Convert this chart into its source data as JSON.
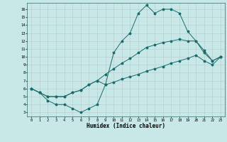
{
  "title": "",
  "xlabel": "Humidex (Indice chaleur)",
  "ylabel": "",
  "background_color": "#c8e8e8",
  "line_color": "#1a6b6b",
  "xlim": [
    -0.5,
    23.5
  ],
  "ylim": [
    2.5,
    16.8
  ],
  "xticks": [
    0,
    1,
    2,
    3,
    4,
    5,
    6,
    7,
    8,
    9,
    10,
    11,
    12,
    13,
    14,
    15,
    16,
    17,
    18,
    19,
    20,
    21,
    22,
    23
  ],
  "yticks": [
    3,
    4,
    5,
    6,
    7,
    8,
    9,
    10,
    11,
    12,
    13,
    14,
    15,
    16
  ],
  "line1_x": [
    0,
    1,
    2,
    3,
    4,
    5,
    6,
    7,
    8,
    9,
    10,
    11,
    12,
    13,
    14,
    15,
    16,
    17,
    18,
    19,
    20,
    21,
    22,
    23
  ],
  "line1_y": [
    6.0,
    5.5,
    4.5,
    4.0,
    4.0,
    3.5,
    3.0,
    3.5,
    4.0,
    6.5,
    10.5,
    12.0,
    13.0,
    15.5,
    16.5,
    15.5,
    16.0,
    16.0,
    15.5,
    13.2,
    12.0,
    10.5,
    9.5,
    10.0
  ],
  "line2_x": [
    0,
    1,
    2,
    3,
    4,
    5,
    6,
    7,
    8,
    9,
    10,
    11,
    12,
    13,
    14,
    15,
    16,
    17,
    18,
    19,
    20,
    21,
    22,
    23
  ],
  "line2_y": [
    6.0,
    5.5,
    5.0,
    5.0,
    5.0,
    5.5,
    5.8,
    6.5,
    7.0,
    7.8,
    8.5,
    9.2,
    9.8,
    10.5,
    11.2,
    11.5,
    11.8,
    12.0,
    12.2,
    12.0,
    12.0,
    10.8,
    9.5,
    10.0
  ],
  "line3_x": [
    0,
    1,
    2,
    3,
    4,
    5,
    6,
    7,
    8,
    9,
    10,
    11,
    12,
    13,
    14,
    15,
    16,
    17,
    18,
    19,
    20,
    21,
    22,
    23
  ],
  "line3_y": [
    6.0,
    5.5,
    5.0,
    5.0,
    5.0,
    5.5,
    5.8,
    6.5,
    7.0,
    6.5,
    6.8,
    7.2,
    7.5,
    7.8,
    8.2,
    8.5,
    8.8,
    9.2,
    9.5,
    9.8,
    10.2,
    9.5,
    9.0,
    10.0
  ]
}
